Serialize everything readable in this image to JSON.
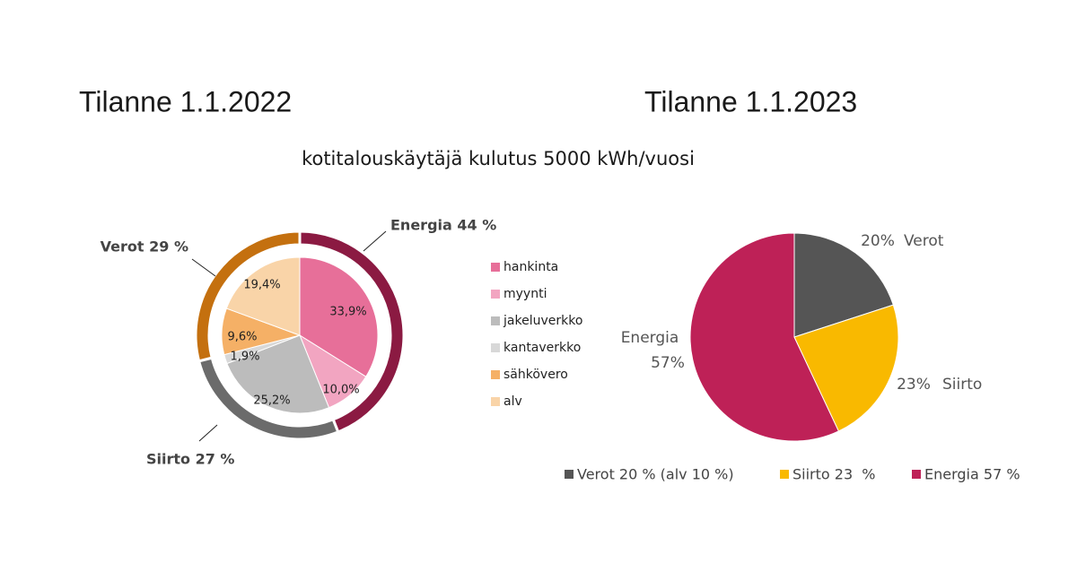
{
  "subtitle": "kotitalouskäytäjä kulutus 5000 kWh/vuosi",
  "chart_data": [
    {
      "type": "nested-pie",
      "title": "Tilanne 1.1.2022",
      "categories": [
        "hankinta",
        "myynti",
        "jakeluverkko",
        "kantaverkko",
        "sähkövero",
        "alv"
      ],
      "values": [
        33.9,
        10.0,
        25.2,
        1.9,
        9.6,
        19.4
      ],
      "value_labels": [
        "33,9%",
        "10,0%",
        "25,2%",
        "1,9%",
        "9,6%",
        "19,4%"
      ],
      "colors": [
        "#e76f99",
        "#f2a5c1",
        "#bcbcbc",
        "#d8d8d8",
        "#f5b066",
        "#f9d4a8"
      ],
      "outer": {
        "labels": [
          "Energia 44 %",
          "Siirto 27 %",
          "Verot 29 %"
        ],
        "values": [
          44,
          27,
          29
        ],
        "colors": [
          "#8b1a42",
          "#6b6b6b",
          "#c4700f"
        ]
      }
    },
    {
      "type": "pie",
      "title": "Tilanne 1.1.2023",
      "categories": [
        "Verot",
        "Siirto",
        "Energia"
      ],
      "values": [
        20,
        23,
        57
      ],
      "value_labels": [
        "20%",
        "23%",
        "57%"
      ],
      "colors": [
        "#555555",
        "#f9b900",
        "#be2157"
      ],
      "legend": [
        "Verot 20 % (alv 10 %)",
        "Siirto 23  %",
        "Energia 57 %"
      ]
    }
  ]
}
